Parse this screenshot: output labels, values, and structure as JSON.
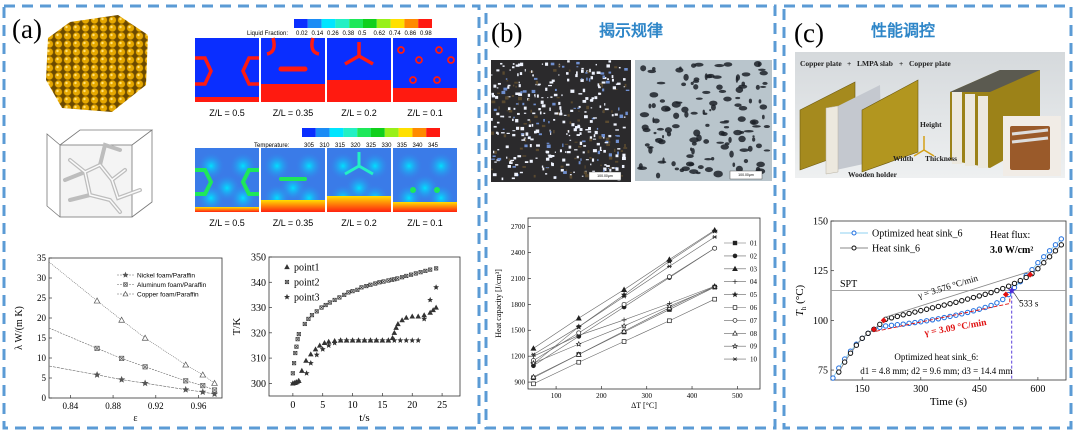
{
  "colors": {
    "frame": "#5b9bd5",
    "title_blue": "#2e86c8",
    "colormap": [
      "#0a2eff",
      "#1b8cf5",
      "#00e5ff",
      "#23f0c4",
      "#1ee85a",
      "#10d01c",
      "#98f019",
      "#ffe000",
      "#ff8a00",
      "#ff1a10"
    ]
  },
  "panels": {
    "a": {
      "label": "(a)",
      "liquid_fraction_title": "Liquid Fraction:",
      "liquid_fraction_ticks": [
        "0.02",
        "0.14",
        "0.26",
        "0.38",
        "0.5",
        "0.62",
        "0.74",
        "0.86",
        "0.98"
      ],
      "temperature_title": "Temperature:",
      "temperature_ticks": [
        "305",
        "310",
        "315",
        "320",
        "325",
        "330",
        "335",
        "340",
        "345"
      ],
      "slices": [
        "Z/L = 0.5",
        "Z/L = 0.35",
        "Z/L = 0.2",
        "Z/L = 0.1"
      ]
    },
    "b": {
      "label": "(b)",
      "title": "揭示规律",
      "scale_bar": "100.00μm"
    },
    "c": {
      "label": "(c)",
      "title": "性能调控",
      "render_labels": {
        "copper_plate_1": "Copper plate",
        "plus_1": "+",
        "lmpa_slab": "LMPA slab",
        "plus_2": "+",
        "copper_plate_2": "Copper plate",
        "height": "Height",
        "width": "Width",
        "thickness": "Thickness",
        "wooden_holder": "Wooden holder"
      }
    }
  },
  "chart_data": [
    {
      "id": "conductivity",
      "type": "line",
      "xlabel": "ε",
      "ylabel": "λ W/(m K)",
      "xlim": [
        0.82,
        0.982
      ],
      "ylim": [
        0,
        35
      ],
      "xticks": [
        "0.84",
        "0.88",
        "0.92",
        "0.96"
      ],
      "yticks": [
        "0",
        "5",
        "10",
        "15",
        "20",
        "25",
        "30",
        "35"
      ],
      "grid": false,
      "legend": "top-right",
      "series": [
        {
          "name": "Nickel foam/Paraffin",
          "marker": "star",
          "x": [
            0.82,
            0.865,
            0.888,
            0.91,
            0.948,
            0.964,
            0.975
          ],
          "y": [
            8,
            5.8,
            4.6,
            3.7,
            2.1,
            1.5,
            1.0
          ]
        },
        {
          "name": "Aluminum foam/Paraffin",
          "marker": "x-square",
          "x": [
            0.82,
            0.865,
            0.888,
            0.91,
            0.948,
            0.964,
            0.975
          ],
          "y": [
            17.5,
            12.4,
            9.9,
            7.8,
            4.3,
            3.1,
            2.0
          ]
        },
        {
          "name": "Copper foam/Paraffin",
          "marker": "triangle-open",
          "x": [
            0.82,
            0.865,
            0.888,
            0.91,
            0.948,
            0.964,
            0.975
          ],
          "y": [
            34,
            24.3,
            19.5,
            15,
            8.3,
            5.8,
            3.7
          ]
        }
      ]
    },
    {
      "id": "temperature-time",
      "type": "scatter",
      "xlabel": "t/s",
      "ylabel": "T/K",
      "xlim": [
        -4,
        28
      ],
      "ylim": [
        295,
        350
      ],
      "xticks": [
        "0",
        "5",
        "10",
        "15",
        "20",
        "25"
      ],
      "yticks": [
        "300",
        "310",
        "320",
        "330",
        "340",
        "350"
      ],
      "grid": false,
      "legend": "top-left",
      "series": [
        {
          "name": "point1",
          "marker": "triangle",
          "x": [
            0,
            0.3,
            0.6,
            1,
            1.5,
            2.2,
            3,
            3.8,
            4.5,
            5.3,
            6,
            7,
            8,
            9,
            10,
            11,
            12,
            13,
            14,
            15,
            16,
            16.7,
            17,
            17.3,
            17.6,
            18.3,
            19,
            20,
            21,
            22,
            23,
            23.5,
            24
          ],
          "y": [
            300,
            300.2,
            300.5,
            301,
            305,
            309,
            311.5,
            313.5,
            315,
            316,
            316.5,
            316.8,
            317,
            317,
            317,
            317,
            317,
            317,
            317,
            317,
            317,
            318,
            320,
            322,
            323.5,
            325,
            326,
            326.5,
            326.5,
            327,
            328,
            329,
            330
          ]
        },
        {
          "name": "point2",
          "marker": "x-square",
          "x": [
            0,
            0.2,
            0.4,
            0.6,
            0.8,
            1,
            2,
            2.6,
            3.2,
            4,
            4.8,
            5.5,
            6.2,
            7,
            7.8,
            8.6,
            9.3,
            10,
            10.8,
            11.5,
            12.3,
            13,
            13.8,
            14.5,
            15.2,
            16,
            16.6,
            17,
            17.5,
            18.3,
            19,
            19.8,
            20.6,
            21.4,
            22.2,
            23,
            24
          ],
          "y": [
            304,
            308,
            312,
            314.5,
            317.5,
            319.5,
            323.5,
            325.5,
            327,
            328.5,
            330,
            331,
            332,
            333,
            334,
            335,
            336,
            336.5,
            337,
            338,
            338.5,
            339,
            339.5,
            340,
            340.3,
            340.7,
            341,
            341.2,
            341.5,
            342,
            342.5,
            343,
            343.5,
            344,
            344.5,
            345,
            345.5
          ]
        },
        {
          "name": "point3",
          "marker": "star",
          "x": [
            0,
            0.5,
            0.9,
            2.3,
            3,
            4,
            5,
            6,
            7,
            8,
            9,
            10,
            11,
            12,
            13,
            14,
            15,
            16,
            17,
            18,
            19,
            20,
            21,
            22,
            23,
            24
          ],
          "y": [
            300,
            300.3,
            300.8,
            304,
            308,
            311.3,
            313.5,
            315,
            316,
            317,
            317,
            317,
            317,
            317,
            317,
            317,
            317,
            317,
            317,
            317,
            317,
            317,
            317,
            325.5,
            333,
            338
          ]
        }
      ]
    },
    {
      "id": "heat-capacity",
      "type": "line",
      "xlabel": "ΔT [°C]",
      "ylabel": "Heat capacity [J/cm³]",
      "xlim": [
        38,
        550
      ],
      "ylim": [
        820,
        2800
      ],
      "xticks": [
        "100",
        "200",
        "300",
        "400",
        "500"
      ],
      "yticks": [
        "900",
        "1200",
        "1500",
        "1800",
        "2100",
        "2400",
        "2700"
      ],
      "grid": false,
      "legend": "right",
      "x": [
        50,
        150,
        250,
        350,
        450
      ],
      "series": [
        {
          "name": "01",
          "marker": "square",
          "y": [
            950,
            1220,
            1480,
            1740,
            2000
          ]
        },
        {
          "name": "02",
          "marker": "circle",
          "y": [
            1090,
            1430,
            1770,
            2110,
            2450
          ]
        },
        {
          "name": "03",
          "marker": "triangle",
          "y": [
            1290,
            1640,
            1970,
            2320,
            2660
          ]
        },
        {
          "name": "04",
          "marker": "plus",
          "y": [
            1200,
            1440,
            1620,
            1810,
            2010
          ]
        },
        {
          "name": "05",
          "marker": "star",
          "y": [
            1110,
            1540,
            1910,
            2300,
            2650
          ]
        },
        {
          "name": "06",
          "marker": "square-open",
          "y": [
            880,
            1130,
            1370,
            1610,
            1860
          ]
        },
        {
          "name": "07",
          "marker": "circle-open",
          "y": [
            1150,
            1470,
            1800,
            2120,
            2450
          ]
        },
        {
          "name": "08",
          "marker": "triangle-open",
          "y": [
            960,
            1220,
            1490,
            1760,
            2010
          ]
        },
        {
          "name": "09",
          "marker": "star-open",
          "y": [
            1120,
            1340,
            1550,
            1780,
            2000
          ]
        },
        {
          "name": "10",
          "marker": "asterisk",
          "y": [
            1220,
            1540,
            1890,
            2240,
            2580
          ]
        }
      ]
    },
    {
      "id": "heat-sink",
      "type": "line",
      "xlabel": "Time (s)",
      "ylabel_main": "T",
      "ylabel_sub": "h",
      "ylabel_unit": " (°C)",
      "xlim": [
        70,
        672
      ],
      "ylim": [
        70,
        150
      ],
      "xticks": [
        "150",
        "300",
        "450",
        "600"
      ],
      "yticks": [
        "75",
        "100",
        "125",
        "150"
      ],
      "grid": false,
      "legend": "top-left",
      "spt_value": 115,
      "series": [
        {
          "name": "Optimized heat sink_6",
          "color": "#1f6fe0",
          "line_color": "#8fd0f0",
          "x": [
            75,
            90,
            105,
            120,
            135,
            150,
            165,
            180,
            195,
            210,
            225,
            240,
            255,
            270,
            285,
            300,
            315,
            330,
            345,
            360,
            375,
            390,
            405,
            420,
            435,
            450,
            465,
            480,
            495,
            510,
            525,
            540,
            555,
            570,
            585,
            600,
            615,
            630,
            645,
            660
          ],
          "y": [
            71,
            76,
            80.5,
            84.5,
            88,
            91,
            93.5,
            95.5,
            96.5,
            97.2,
            97.5,
            97.8,
            98.1,
            98.5,
            98.9,
            99.3,
            99.8,
            100.3,
            100.8,
            101.4,
            102,
            102.6,
            103.3,
            104,
            104.8,
            105.6,
            106.5,
            107.5,
            108.8,
            110.5,
            113,
            116.5,
            119.5,
            122.5,
            125.5,
            129,
            132,
            135,
            138,
            141
          ]
        },
        {
          "name": "Heat sink_6",
          "color": "#111111",
          "line_color": "#888888",
          "x": [
            90,
            105,
            120,
            135,
            150,
            165,
            180,
            195,
            210,
            225,
            240,
            255,
            270,
            285,
            300,
            315,
            330,
            345,
            360,
            375,
            390,
            405,
            420,
            435,
            450,
            465,
            480,
            495,
            510,
            525,
            540,
            555,
            570,
            585,
            600,
            615,
            630,
            645,
            660
          ],
          "y": [
            74,
            79,
            83.5,
            87.5,
            91,
            93.5,
            95.5,
            98,
            100.5,
            101.3,
            102,
            102.8,
            103.5,
            104.2,
            104.9,
            105.6,
            106.3,
            107,
            107.7,
            108.4,
            109.1,
            109.9,
            110.7,
            111.5,
            112.3,
            113.1,
            114,
            115,
            116,
            117.2,
            118.6,
            120,
            121.6,
            123.5,
            126,
            129,
            132,
            135,
            138
          ]
        }
      ],
      "annotations": {
        "spt": "SPT",
        "gamma_original": "γ = 3.576 °C/min",
        "gamma_optimized": "γ = 3.09 °C/min",
        "time_mark": "533 s",
        "heat_flux_label": "Heat flux:",
        "heat_flux_value": "3.0 W/cm²",
        "optimized_title": "Optimized heat sink_6:",
        "dimensions": "d1 = 4.8 mm; d2 = 9.6 mm; d3 = 14.4 mm"
      },
      "highlight_time": 533
    }
  ]
}
